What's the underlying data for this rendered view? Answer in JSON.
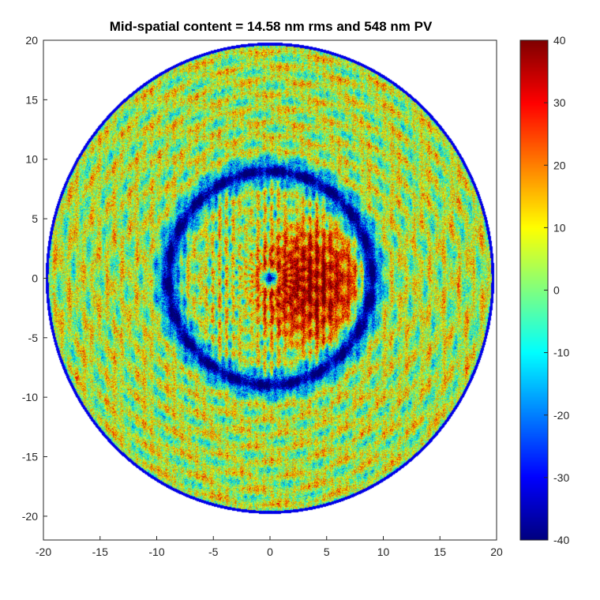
{
  "chart_data": {
    "type": "heatmap",
    "title": "Mid-spatial content = 14.58 nm rms and 548 nm PV",
    "xlabel": "",
    "ylabel": "",
    "xlim": [
      -20,
      20
    ],
    "ylim": [
      -22,
      20
    ],
    "xticks": [
      -20,
      -15,
      -10,
      -5,
      0,
      5,
      10,
      15,
      20
    ],
    "yticks": [
      20,
      15,
      10,
      5,
      0,
      -5,
      -10,
      -15,
      -20
    ],
    "grid": true,
    "aperture_radius": 19.8,
    "colorbar": {
      "colormap": "jet",
      "range": [
        -40,
        40
      ],
      "ticks": [
        40,
        30,
        20,
        10,
        0,
        -10,
        -20,
        -30,
        -40
      ]
    },
    "features": {
      "background_level": 5,
      "outer_ring_pattern": "alternating warm and cool patches in rings",
      "trench_ring": {
        "radius": 9.0,
        "width": 0.9,
        "level": -38
      },
      "central_bump": {
        "center": [
          3.5,
          -0.5
        ],
        "radius": 6,
        "level": 35
      },
      "center_dimple": {
        "center": [
          0,
          0
        ],
        "radius": 1.1,
        "level": -38
      }
    },
    "colors": {
      "jet_low": "#00008f",
      "jet_mid": "#00ffff",
      "jet_zero": "#7fff7f",
      "jet_high": "#800000",
      "axis": "#262626",
      "grid": "#dedede"
    }
  }
}
